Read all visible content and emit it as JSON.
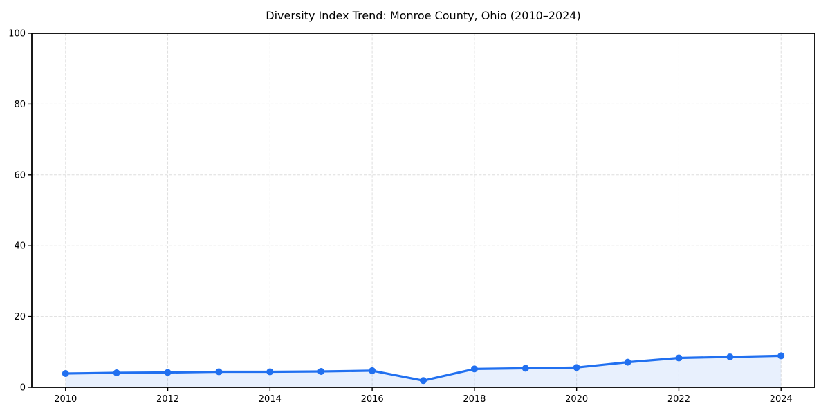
{
  "chart_data": {
    "type": "line",
    "title": "Diversity Index Trend: Monroe County, Ohio (2010–2024)",
    "x": [
      2010,
      2011,
      2012,
      2013,
      2014,
      2015,
      2016,
      2017,
      2018,
      2019,
      2020,
      2021,
      2022,
      2023,
      2024
    ],
    "series": [
      {
        "name": "Diversity Index",
        "values": [
          3.9,
          4.1,
          4.2,
          4.4,
          4.4,
          4.5,
          4.7,
          1.9,
          5.2,
          5.4,
          5.6,
          7.1,
          8.3,
          8.6,
          8.9
        ]
      }
    ],
    "xlabel": "",
    "ylabel": "",
    "xlim": [
      2009.34,
      2024.66
    ],
    "ylim": [
      0,
      100
    ],
    "xticks": [
      2010,
      2012,
      2014,
      2016,
      2018,
      2020,
      2022,
      2024
    ],
    "yticks": [
      0,
      20,
      40,
      60,
      80,
      100
    ],
    "grid": true,
    "grid_style": "dashed",
    "legend": "none",
    "marker": "circle",
    "colors": {
      "line": "#2170f0",
      "fill": "rgba(33, 112, 240, 0.10)",
      "grid": "#dedede",
      "axis": "#000000",
      "text": "#000000",
      "background": "#ffffff"
    }
  }
}
